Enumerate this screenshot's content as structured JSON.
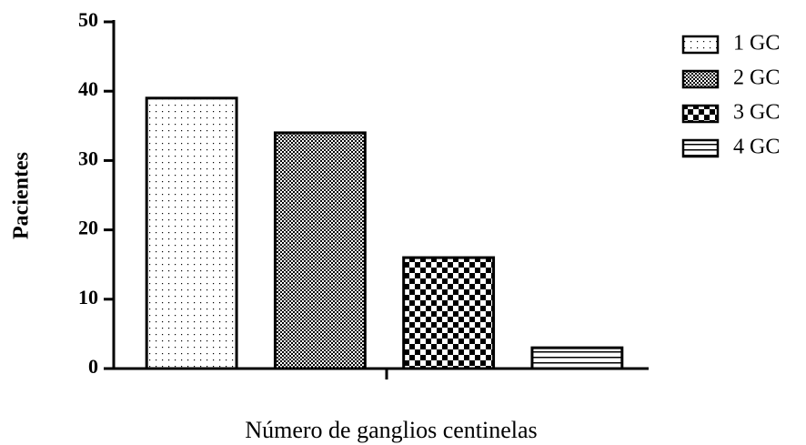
{
  "chart_data": {
    "type": "bar",
    "xlabel": "Número de ganglios centinelas",
    "ylabel": "Pacientes",
    "categories": [
      "1 GC",
      "2 GC",
      "3 GC",
      "4 GC"
    ],
    "values": [
      39,
      34,
      16,
      3
    ],
    "color": "#000000",
    "ylim": [
      0,
      50
    ],
    "yticks": [
      0,
      10,
      20,
      30,
      40,
      50
    ],
    "grid": false,
    "legend": "upper right"
  }
}
